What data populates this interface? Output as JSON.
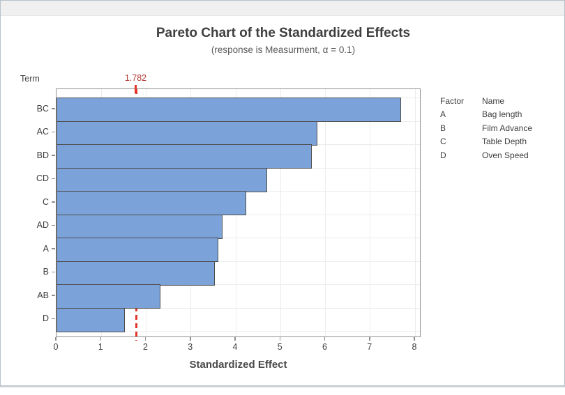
{
  "window": {
    "kind": "graph-window"
  },
  "chart_data": {
    "type": "bar",
    "orientation": "horizontal",
    "title": "Pareto Chart of the Standardized Effects",
    "subtitle": "(response is Measurment, α = 0.1)",
    "xlabel": "Standardized Effect",
    "ylabel": "Term",
    "categories": [
      "BC",
      "AC",
      "BD",
      "CD",
      "C",
      "AD",
      "A",
      "B",
      "AB",
      "D"
    ],
    "values": [
      7.69,
      5.82,
      5.7,
      4.7,
      4.23,
      3.71,
      3.61,
      3.53,
      2.32,
      1.53
    ],
    "xlim": [
      0,
      8
    ],
    "x_ticks": [
      0,
      1,
      2,
      3,
      4,
      5,
      6,
      7,
      8
    ],
    "grid": "on",
    "reference_line": {
      "value": 1.782,
      "label": "1.782"
    },
    "legend": {
      "position": "right",
      "header": {
        "factor": "Factor",
        "name": "Name"
      },
      "entries": [
        {
          "factor": "A",
          "name": "Bag length"
        },
        {
          "factor": "B",
          "name": "Film Advance"
        },
        {
          "factor": "C",
          "name": "Table Depth"
        },
        {
          "factor": "D",
          "name": "Oven Speed"
        }
      ]
    },
    "colors": {
      "bar_fill": "#7CA3D9",
      "bar_border": "#4D4D4D",
      "reference_line": "#E2362A",
      "reference_label": "#B23A34",
      "gridline": "#ECECEC",
      "frame": "#8F8F8F"
    }
  }
}
